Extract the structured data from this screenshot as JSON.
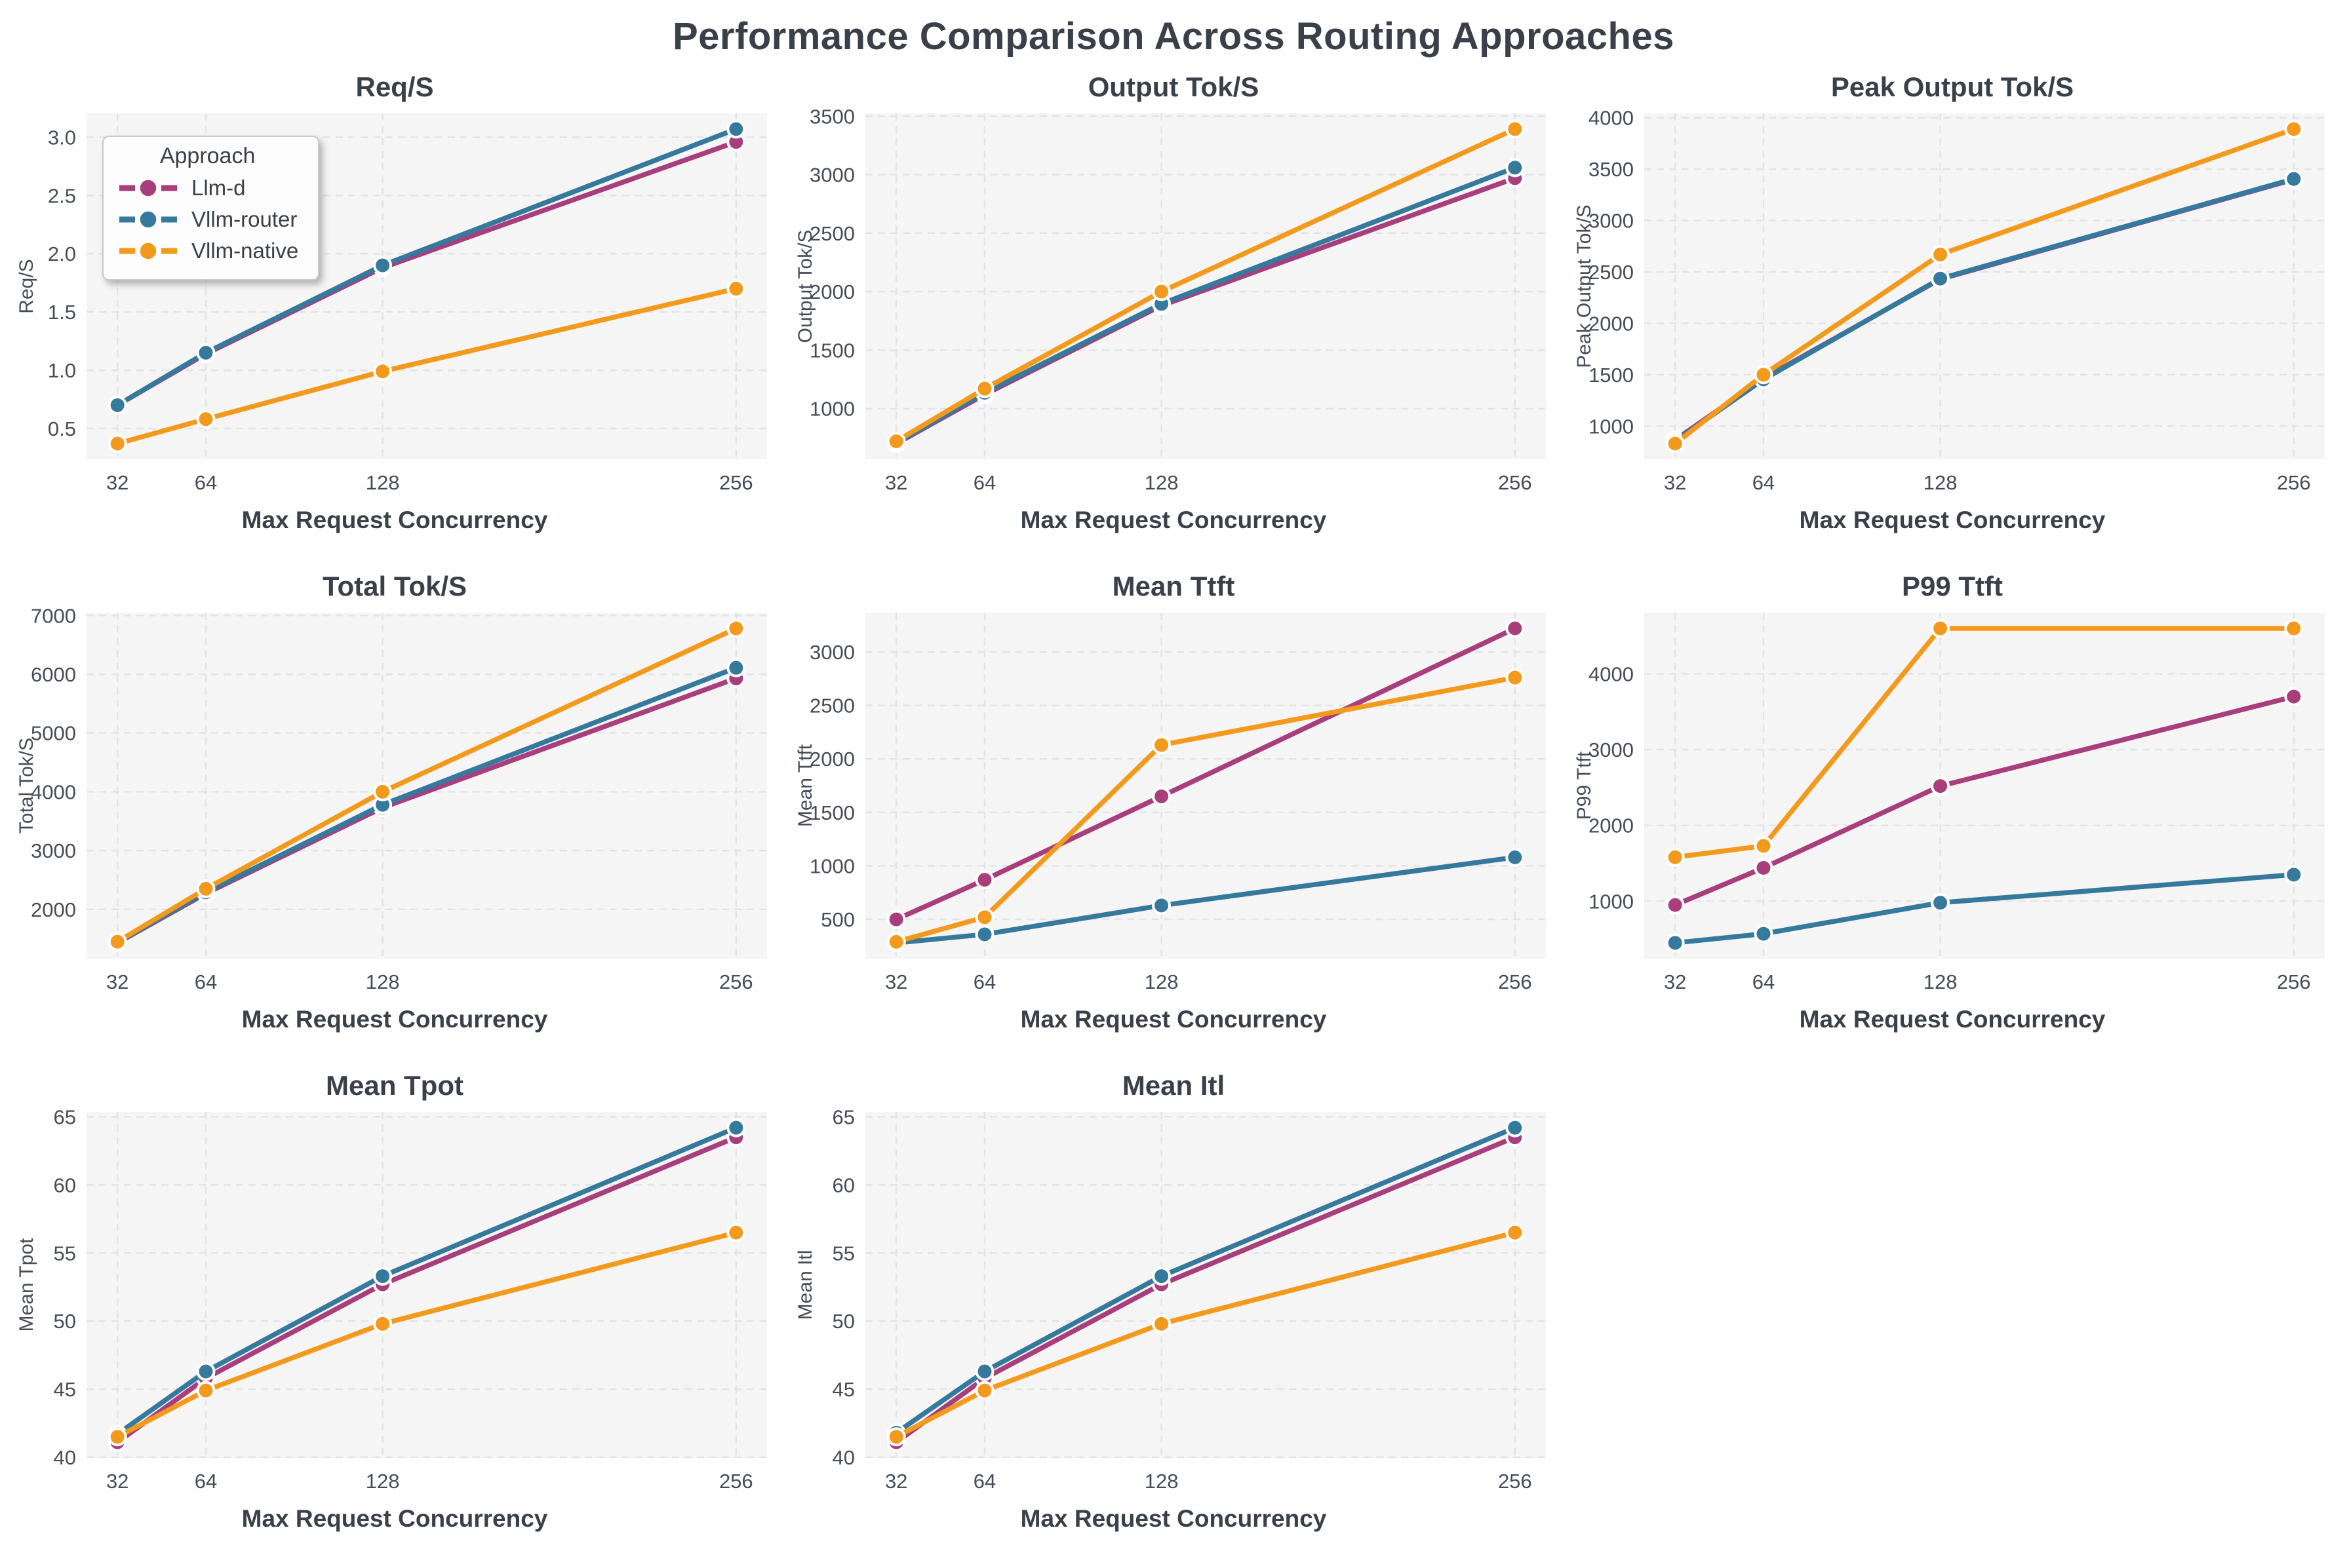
{
  "suptitle": "Performance Comparison Across Routing Approaches",
  "x_axis_label": "Max Request Concurrency",
  "x_ticks": [
    32,
    64,
    128,
    256
  ],
  "legend": {
    "title": "Approach",
    "entries": [
      "Llm-d",
      "Vllm-router",
      "Vllm-native"
    ]
  },
  "series_colors": {
    "Llm-d": "#A83E7C",
    "Vllm-router": "#35799C",
    "Vllm-native": "#F39A1C"
  },
  "styles": {
    "figure_bg": "#FFFFFF",
    "plot_bg": "#F5F5F6",
    "grid_color": "#E3E3E7",
    "title_color": "#39404A",
    "tick_color": "#454C57",
    "marker_edge": "#FFFFFF"
  },
  "chart_data": [
    {
      "type": "line",
      "title": "Req/S",
      "ylabel": "Req/S",
      "x": [
        32,
        64,
        128,
        256
      ],
      "series": [
        {
          "name": "Llm-d",
          "values": [
            0.7,
            1.14,
            1.88,
            2.96
          ]
        },
        {
          "name": "Vllm-router",
          "values": [
            0.7,
            1.15,
            1.9,
            3.07
          ]
        },
        {
          "name": "Vllm-native",
          "values": [
            0.37,
            0.58,
            0.99,
            1.7
          ]
        }
      ],
      "ylim": [
        0.235,
        3.205
      ],
      "yticks": [
        0.5,
        1.0,
        1.5,
        2.0,
        2.5,
        3.0
      ],
      "ytick_labels": [
        "0.5",
        "1.0",
        "1.5",
        "2.0",
        "2.5",
        "3.0"
      ],
      "legend": true,
      "grid": true,
      "legend_position": "upper left"
    },
    {
      "type": "line",
      "title": "Output Tok/S",
      "ylabel": "Output Tok/S",
      "x": [
        32,
        64,
        128,
        256
      ],
      "series": [
        {
          "name": "Llm-d",
          "values": [
            700,
            1120,
            1880,
            2970
          ]
        },
        {
          "name": "Vllm-router",
          "values": [
            705,
            1135,
            1895,
            3060
          ]
        },
        {
          "name": "Vllm-native",
          "values": [
            720,
            1170,
            2000,
            3390
          ]
        }
      ],
      "ylim": [
        566,
        3524
      ],
      "yticks": [
        1000,
        1500,
        2000,
        2500,
        3000,
        3500
      ],
      "ytick_labels": [
        "1000",
        "1500",
        "2000",
        "2500",
        "3000",
        "3500"
      ],
      "legend": false,
      "grid": true
    },
    {
      "type": "line",
      "title": "Peak Output Tok/S",
      "ylabel": "Peak Output Tok/S",
      "x": [
        32,
        64,
        128,
        256
      ],
      "series": [
        {
          "name": "Llm-d",
          "values": [
            865,
            1465,
            2430,
            3400
          ]
        },
        {
          "name": "Vllm-router",
          "values": [
            855,
            1455,
            2435,
            3405
          ]
        },
        {
          "name": "Vllm-native",
          "values": [
            830,
            1500,
            2670,
            3890
          ]
        }
      ],
      "ylim": [
        677,
        4043
      ],
      "yticks": [
        1000,
        1500,
        2000,
        2500,
        3000,
        3500,
        4000
      ],
      "ytick_labels": [
        "1000",
        "1500",
        "2000",
        "2500",
        "3000",
        "3500",
        "4000"
      ],
      "legend": false,
      "grid": true
    },
    {
      "type": "line",
      "title": "Total Tok/S",
      "ylabel": "Total Tok/S",
      "x": [
        32,
        64,
        128,
        256
      ],
      "series": [
        {
          "name": "Llm-d",
          "values": [
            1430,
            2270,
            3730,
            5930
          ]
        },
        {
          "name": "Vllm-router",
          "values": [
            1440,
            2290,
            3780,
            6110
          ]
        },
        {
          "name": "Vllm-native",
          "values": [
            1450,
            2350,
            4000,
            6780
          ]
        }
      ],
      "ylim": [
        1162,
        7048
      ],
      "yticks": [
        2000,
        3000,
        4000,
        5000,
        6000,
        7000
      ],
      "ytick_labels": [
        "2000",
        "3000",
        "4000",
        "5000",
        "6000",
        "7000"
      ],
      "legend": false,
      "grid": true
    },
    {
      "type": "line",
      "title": "Mean Ttft",
      "ylabel": "Mean Ttft",
      "x": [
        32,
        64,
        128,
        256
      ],
      "series": [
        {
          "name": "Llm-d",
          "values": [
            500,
            870,
            1650,
            3220
          ]
        },
        {
          "name": "Vllm-router",
          "values": [
            280,
            360,
            630,
            1080
          ]
        },
        {
          "name": "Vllm-native",
          "values": [
            290,
            520,
            2130,
            2760
          ]
        }
      ],
      "ylim": [
        133,
        3367
      ],
      "yticks": [
        500,
        1000,
        1500,
        2000,
        2500,
        3000
      ],
      "ytick_labels": [
        "500",
        "1000",
        "1500",
        "2000",
        "2500",
        "3000"
      ],
      "legend": false,
      "grid": true
    },
    {
      "type": "line",
      "title": "P99 Ttft",
      "ylabel": "P99 Ttft",
      "x": [
        32,
        64,
        128,
        256
      ],
      "series": [
        {
          "name": "Llm-d",
          "values": [
            950,
            1440,
            2520,
            3700
          ]
        },
        {
          "name": "Vllm-router",
          "values": [
            450,
            570,
            980,
            1350
          ]
        },
        {
          "name": "Vllm-native",
          "values": [
            1580,
            1730,
            4600,
            4600
          ]
        }
      ],
      "ylim": [
        242,
        4808
      ],
      "yticks": [
        1000,
        2000,
        3000,
        4000
      ],
      "ytick_labels": [
        "1000",
        "2000",
        "3000",
        "4000"
      ],
      "legend": false,
      "grid": true
    },
    {
      "type": "line",
      "title": "Mean Tpot",
      "ylabel": "Mean Tpot",
      "x": [
        32,
        64,
        128,
        256
      ],
      "series": [
        {
          "name": "Llm-d",
          "values": [
            41.1,
            45.8,
            52.7,
            63.5
          ]
        },
        {
          "name": "Vllm-router",
          "values": [
            41.7,
            46.3,
            53.3,
            64.2
          ]
        },
        {
          "name": "Vllm-native",
          "values": [
            41.5,
            44.9,
            49.8,
            56.5
          ]
        }
      ],
      "ylim": [
        39.95,
        65.36
      ],
      "yticks": [
        40,
        45,
        50,
        55,
        60,
        65
      ],
      "ytick_labels": [
        "40",
        "45",
        "50",
        "55",
        "60",
        "65"
      ],
      "legend": false,
      "grid": true
    },
    {
      "type": "line",
      "title": "Mean Itl",
      "ylabel": "Mean Itl",
      "x": [
        32,
        64,
        128,
        256
      ],
      "series": [
        {
          "name": "Llm-d",
          "values": [
            41.1,
            45.8,
            52.7,
            63.5
          ]
        },
        {
          "name": "Vllm-router",
          "values": [
            41.8,
            46.3,
            53.3,
            64.2
          ]
        },
        {
          "name": "Vllm-native",
          "values": [
            41.5,
            44.9,
            49.8,
            56.5
          ]
        }
      ],
      "ylim": [
        39.95,
        65.36
      ],
      "yticks": [
        40,
        45,
        50,
        55,
        60,
        65
      ],
      "ytick_labels": [
        "40",
        "45",
        "50",
        "55",
        "60",
        "65"
      ],
      "legend": false,
      "grid": true
    }
  ]
}
